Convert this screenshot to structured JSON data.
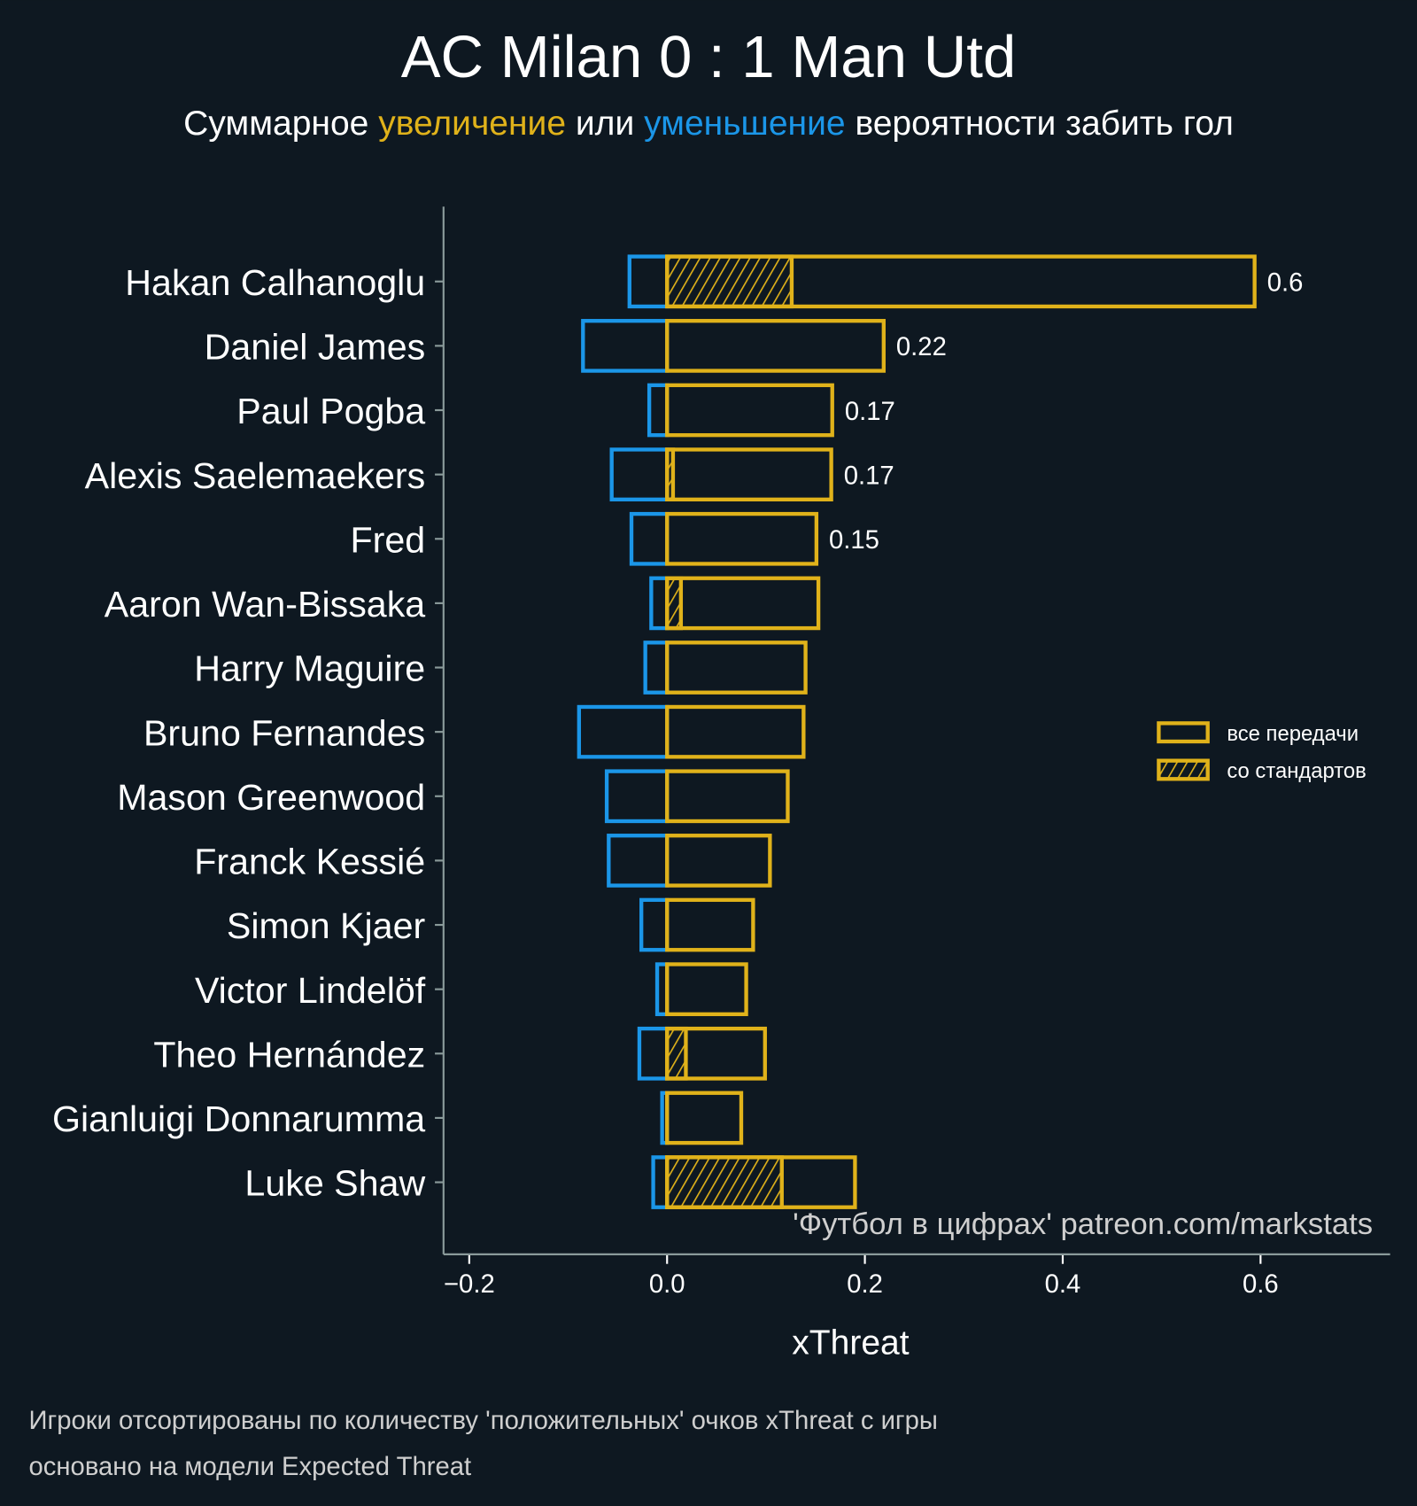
{
  "colors": {
    "background": "#0e1821",
    "positive": "#e0b21a",
    "negative": "#1b96e8",
    "axis": "#8a9a9a"
  },
  "chart_data": {
    "type": "bar",
    "orientation": "horizontal",
    "title": "AC Milan 0 : 1 Man Utd",
    "subtitle": {
      "part1": "Суммарное ",
      "increase": "увеличение",
      "part2": " или ",
      "decrease": "уменьшение",
      "part3": " вероятности забить гол"
    },
    "xlabel": "xThreat",
    "xlim": [
      -0.226,
      0.731
    ],
    "xticks": [
      -0.2,
      0.0,
      0.2,
      0.4,
      0.6
    ],
    "xtick_labels": [
      "−0.2",
      "0.0",
      "0.2",
      "0.4",
      "0.6"
    ],
    "categories": [
      "Hakan Calhanoglu",
      "Daniel James",
      "Paul Pogba",
      "Alexis Saelemaekers",
      "Fred",
      "Aaron Wan-Bissaka",
      "Harry Maguire",
      "Bruno Fernandes",
      "Mason Greenwood",
      "Franck Kessié",
      "Simon Kjaer",
      "Victor Lindelöf",
      "Theo Hernández",
      "Gianluigi Donnarumma",
      "Luke Shaw"
    ],
    "series": [
      {
        "name": "все передачи (положительные)",
        "values": [
          0.594,
          0.219,
          0.167,
          0.166,
          0.151,
          0.153,
          0.14,
          0.138,
          0.122,
          0.104,
          0.087,
          0.08,
          0.099,
          0.075,
          0.19
        ]
      },
      {
        "name": "все передачи (отрицательные)",
        "values": [
          -0.038,
          -0.085,
          -0.018,
          -0.056,
          -0.036,
          -0.016,
          -0.022,
          -0.089,
          -0.061,
          -0.059,
          -0.026,
          -0.01,
          -0.028,
          -0.005,
          -0.014
        ]
      },
      {
        "name": "со стандартов",
        "values": [
          0.126,
          0,
          0,
          0.006,
          0,
          0.014,
          0,
          0,
          0,
          0,
          0,
          0,
          0.019,
          0,
          0.116
        ]
      }
    ],
    "data_labels": [
      "0.6",
      "0.22",
      "0.17",
      "0.17",
      "0.15",
      "",
      "",
      "",
      "",
      "",
      "",
      "",
      "",
      "",
      ""
    ],
    "legend": {
      "placement": "right",
      "entries": [
        "все передачи",
        "со стандартов"
      ]
    },
    "watermark": "'Футбол в цифрах' patreon.com/markstats",
    "footnotes": [
      "Игроки отсортированы по количеству 'положительных' очков xThreat с игры",
      "основано на модели Expected Threat"
    ]
  }
}
